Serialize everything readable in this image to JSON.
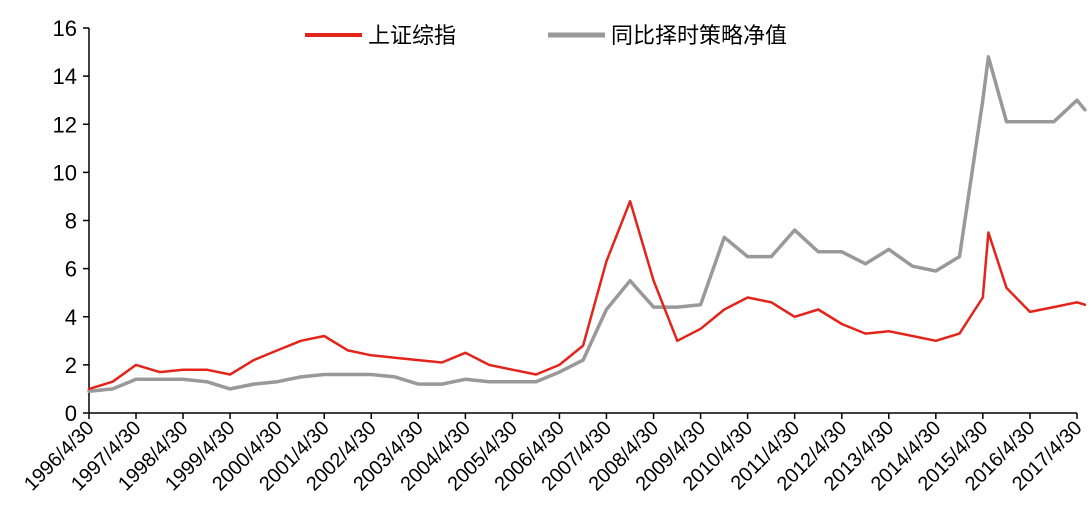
{
  "chart_data": {
    "type": "line",
    "title": "",
    "xlabel": "",
    "ylabel": "",
    "ylim": [
      0,
      16
    ],
    "yticks": [
      0,
      2,
      4,
      6,
      8,
      10,
      12,
      14,
      16
    ],
    "grid": false,
    "legend_position": "top-center",
    "x_tick_labels": [
      "1996/4/30",
      "1997/4/30",
      "1998/4/30",
      "1999/4/30",
      "2000/4/30",
      "2001/4/30",
      "2002/4/30",
      "2003/4/30",
      "2004/4/30",
      "2005/4/30",
      "2006/4/30",
      "2007/4/30",
      "2008/4/30",
      "2009/4/30",
      "2010/4/30",
      "2011/4/30",
      "2012/4/30",
      "2013/4/30",
      "2014/4/30",
      "2015/4/30",
      "2016/4/30",
      "2017/4/30"
    ],
    "x": [
      "1996/4/30",
      "1996/10/31",
      "1997/4/30",
      "1997/10/31",
      "1998/4/30",
      "1998/10/31",
      "1999/4/30",
      "1999/10/31",
      "2000/4/30",
      "2000/10/31",
      "2001/4/30",
      "2001/10/31",
      "2002/4/30",
      "2002/10/31",
      "2003/4/30",
      "2003/10/31",
      "2004/4/30",
      "2004/10/31",
      "2005/4/30",
      "2005/10/31",
      "2006/4/30",
      "2006/10/31",
      "2007/4/30",
      "2007/10/31",
      "2008/4/30",
      "2008/10/31",
      "2009/4/30",
      "2009/10/31",
      "2010/4/30",
      "2010/10/31",
      "2011/4/30",
      "2011/10/31",
      "2012/4/30",
      "2012/10/31",
      "2013/4/30",
      "2013/10/31",
      "2014/4/30",
      "2014/10/31",
      "2015/4/30",
      "2015/6/12",
      "2015/10/31",
      "2016/4/30",
      "2016/10/31",
      "2017/4/30",
      "2017/6/30"
    ],
    "series": [
      {
        "name": "上证综指",
        "color": "#e3241b",
        "values": [
          1.0,
          1.3,
          2.0,
          1.7,
          1.8,
          1.8,
          1.6,
          2.2,
          2.6,
          3.0,
          3.2,
          2.6,
          2.4,
          2.3,
          2.2,
          2.1,
          2.5,
          2.0,
          1.8,
          1.6,
          2.0,
          2.8,
          6.3,
          8.8,
          5.5,
          3.0,
          3.5,
          4.3,
          4.8,
          4.6,
          4.0,
          4.3,
          3.7,
          3.3,
          3.4,
          3.2,
          3.0,
          3.3,
          4.8,
          7.5,
          5.2,
          4.2,
          4.4,
          4.6,
          4.5
        ]
      },
      {
        "name": "同比择时策略净值",
        "color": "#999999",
        "values": [
          0.9,
          1.0,
          1.4,
          1.4,
          1.4,
          1.3,
          1.0,
          1.2,
          1.3,
          1.5,
          1.6,
          1.6,
          1.6,
          1.5,
          1.2,
          1.2,
          1.4,
          1.3,
          1.3,
          1.3,
          1.7,
          2.2,
          4.3,
          5.5,
          4.4,
          4.4,
          4.5,
          7.3,
          6.5,
          6.5,
          7.6,
          6.7,
          6.7,
          6.2,
          6.8,
          6.1,
          5.9,
          6.5,
          13.0,
          14.8,
          12.1,
          12.1,
          12.1,
          13.0,
          12.6
        ]
      }
    ]
  }
}
